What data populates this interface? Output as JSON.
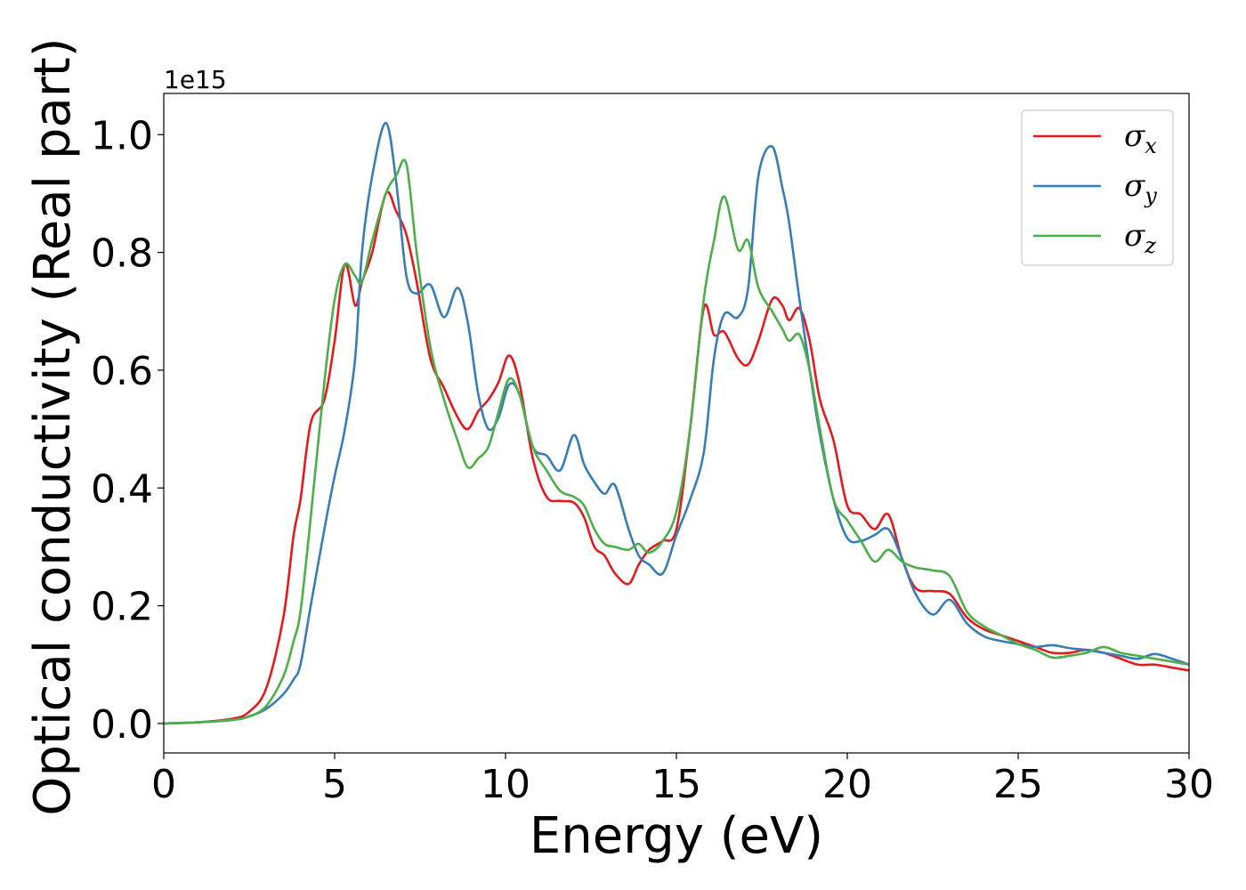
{
  "chart_data": {
    "type": "line",
    "title": "",
    "xlabel": "Energy (eV)",
    "ylabel": "Optical conductivity (Real part)",
    "y_offset_label": "1e15",
    "xlim": [
      0,
      30
    ],
    "ylim": [
      -0.05,
      1.07
    ],
    "x_ticks": [
      0,
      5,
      10,
      15,
      20,
      25,
      30
    ],
    "x_tick_labels": [
      "0",
      "5",
      "10",
      "15",
      "20",
      "25",
      "30"
    ],
    "y_ticks": [
      0.0,
      0.2,
      0.4,
      0.6,
      0.8,
      1.0
    ],
    "y_tick_labels": [
      "0.0",
      "0.2",
      "0.4",
      "0.6",
      "0.8",
      "1.0"
    ],
    "grid": false,
    "legend_position": "top-right",
    "series": [
      {
        "name": "σ",
        "subscript": "x",
        "color": "#e41a1c",
        "x": [
          0,
          1,
          2,
          2.5,
          3.0,
          3.5,
          3.8,
          4.0,
          4.3,
          4.7,
          5.0,
          5.3,
          5.6,
          5.8,
          6.1,
          6.5,
          6.8,
          7.1,
          7.4,
          7.8,
          8.2,
          8.6,
          8.9,
          9.2,
          9.5,
          9.8,
          10.1,
          10.4,
          10.8,
          11.2,
          11.6,
          12.0,
          12.3,
          12.6,
          12.9,
          13.2,
          13.6,
          13.9,
          14.2,
          14.6,
          15.0,
          15.4,
          15.8,
          16.1,
          16.4,
          16.8,
          17.1,
          17.4,
          17.8,
          18.1,
          18.3,
          18.6,
          18.9,
          19.2,
          19.6,
          20.0,
          20.4,
          20.8,
          21.2,
          21.6,
          22.0,
          22.5,
          23.0,
          23.5,
          24.0,
          24.5,
          25.0,
          25.5,
          26.0,
          26.5,
          27.0,
          27.5,
          28.0,
          28.5,
          29.0,
          29.5,
          30.0
        ],
        "y": [
          0.0,
          0.002,
          0.008,
          0.02,
          0.06,
          0.18,
          0.32,
          0.38,
          0.51,
          0.55,
          0.65,
          0.78,
          0.71,
          0.75,
          0.8,
          0.9,
          0.87,
          0.83,
          0.75,
          0.62,
          0.57,
          0.52,
          0.5,
          0.53,
          0.55,
          0.58,
          0.625,
          0.58,
          0.45,
          0.385,
          0.378,
          0.375,
          0.35,
          0.3,
          0.285,
          0.255,
          0.237,
          0.27,
          0.295,
          0.31,
          0.33,
          0.5,
          0.705,
          0.66,
          0.665,
          0.62,
          0.61,
          0.65,
          0.72,
          0.71,
          0.685,
          0.705,
          0.65,
          0.55,
          0.48,
          0.37,
          0.355,
          0.33,
          0.355,
          0.28,
          0.23,
          0.225,
          0.22,
          0.18,
          0.16,
          0.15,
          0.14,
          0.13,
          0.12,
          0.12,
          0.125,
          0.12,
          0.11,
          0.1,
          0.1,
          0.095,
          0.09
        ]
      },
      {
        "name": "σ",
        "subscript": "y",
        "color": "#377eb8",
        "x": [
          0,
          1,
          2,
          2.5,
          3.0,
          3.5,
          3.8,
          4.0,
          4.3,
          4.7,
          5.0,
          5.3,
          5.6,
          5.8,
          6.1,
          6.5,
          6.8,
          7.1,
          7.4,
          7.8,
          8.2,
          8.6,
          8.9,
          9.2,
          9.5,
          9.8,
          10.1,
          10.4,
          10.8,
          11.2,
          11.6,
          12.0,
          12.3,
          12.6,
          12.9,
          13.2,
          13.6,
          13.9,
          14.2,
          14.6,
          15.0,
          15.4,
          15.8,
          16.1,
          16.4,
          16.8,
          17.1,
          17.4,
          17.8,
          18.1,
          18.3,
          18.6,
          18.9,
          19.2,
          19.6,
          20.0,
          20.4,
          20.8,
          21.2,
          21.6,
          22.0,
          22.5,
          23.0,
          23.5,
          24.0,
          24.5,
          25.0,
          25.5,
          26.0,
          26.5,
          27.0,
          27.5,
          28.0,
          28.5,
          29.0,
          29.5,
          30.0
        ],
        "y": [
          0.0,
          0.002,
          0.006,
          0.012,
          0.025,
          0.05,
          0.075,
          0.1,
          0.2,
          0.33,
          0.42,
          0.5,
          0.62,
          0.8,
          0.93,
          1.02,
          0.92,
          0.76,
          0.73,
          0.745,
          0.69,
          0.74,
          0.68,
          0.56,
          0.5,
          0.52,
          0.575,
          0.56,
          0.47,
          0.455,
          0.43,
          0.49,
          0.44,
          0.41,
          0.39,
          0.405,
          0.33,
          0.285,
          0.27,
          0.255,
          0.32,
          0.38,
          0.46,
          0.62,
          0.695,
          0.69,
          0.74,
          0.93,
          0.98,
          0.91,
          0.85,
          0.72,
          0.6,
          0.49,
          0.38,
          0.315,
          0.31,
          0.32,
          0.33,
          0.28,
          0.22,
          0.185,
          0.21,
          0.17,
          0.148,
          0.14,
          0.135,
          0.13,
          0.133,
          0.128,
          0.125,
          0.12,
          0.115,
          0.11,
          0.118,
          0.11,
          0.1
        ]
      },
      {
        "name": "σ",
        "subscript": "z",
        "color": "#4daf4a",
        "x": [
          0,
          1,
          2,
          2.5,
          3.0,
          3.5,
          3.8,
          4.0,
          4.3,
          4.7,
          5.0,
          5.3,
          5.6,
          5.8,
          6.1,
          6.5,
          6.8,
          7.1,
          7.4,
          7.8,
          8.2,
          8.6,
          8.9,
          9.2,
          9.5,
          9.8,
          10.1,
          10.4,
          10.8,
          11.2,
          11.6,
          12.0,
          12.3,
          12.6,
          12.9,
          13.2,
          13.6,
          13.9,
          14.2,
          14.6,
          15.0,
          15.4,
          15.8,
          16.1,
          16.4,
          16.8,
          17.1,
          17.4,
          17.8,
          18.1,
          18.3,
          18.6,
          18.9,
          19.2,
          19.6,
          20.0,
          20.4,
          20.8,
          21.2,
          21.6,
          22.0,
          22.5,
          23.0,
          23.5,
          24.0,
          24.5,
          25.0,
          25.5,
          26.0,
          26.5,
          27.0,
          27.5,
          28.0,
          28.5,
          29.0,
          29.5,
          30.0
        ],
        "y": [
          0.0,
          0.002,
          0.006,
          0.012,
          0.03,
          0.08,
          0.14,
          0.19,
          0.35,
          0.58,
          0.72,
          0.78,
          0.76,
          0.75,
          0.82,
          0.9,
          0.93,
          0.95,
          0.8,
          0.64,
          0.55,
          0.48,
          0.435,
          0.45,
          0.47,
          0.53,
          0.585,
          0.56,
          0.47,
          0.43,
          0.395,
          0.385,
          0.37,
          0.33,
          0.305,
          0.3,
          0.295,
          0.305,
          0.29,
          0.31,
          0.36,
          0.5,
          0.72,
          0.82,
          0.895,
          0.805,
          0.82,
          0.74,
          0.7,
          0.67,
          0.65,
          0.66,
          0.6,
          0.5,
          0.38,
          0.345,
          0.31,
          0.275,
          0.295,
          0.275,
          0.265,
          0.26,
          0.25,
          0.19,
          0.165,
          0.15,
          0.135,
          0.125,
          0.112,
          0.115,
          0.12,
          0.13,
          0.12,
          0.115,
          0.11,
          0.105,
          0.1
        ]
      }
    ]
  }
}
